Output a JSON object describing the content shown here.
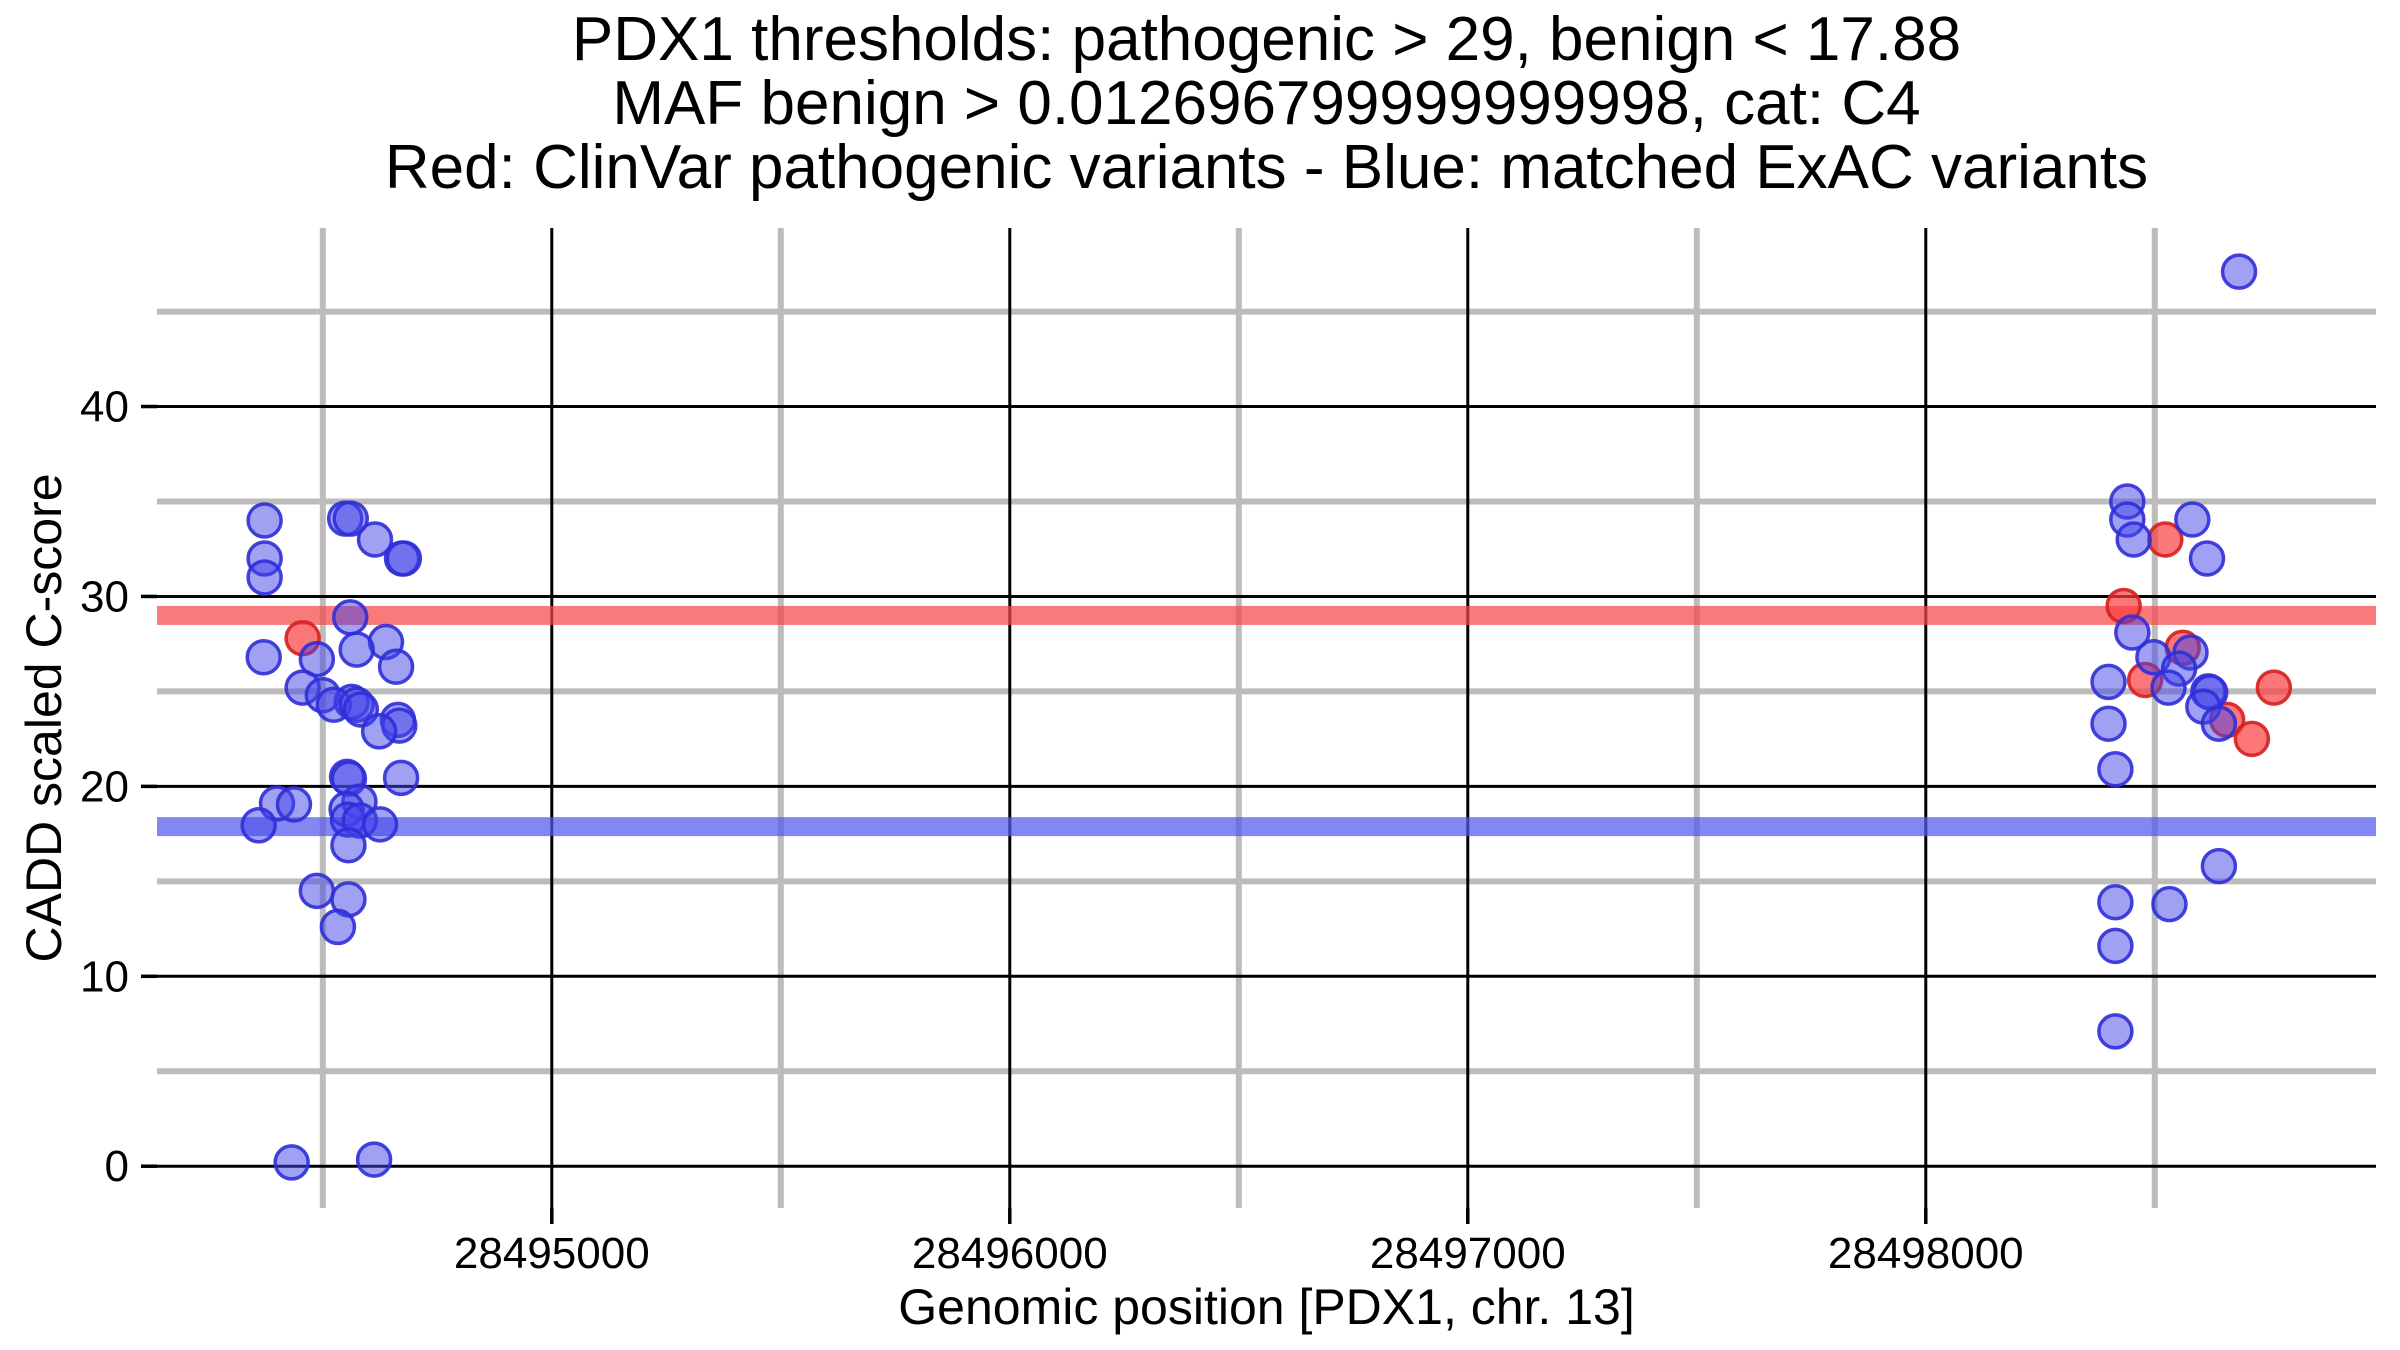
{
  "chart_data": {
    "type": "scatter",
    "title_lines": [
      "PDX1 thresholds: pathogenic > 29, benign < 17.88",
      "MAF benign > 0.012696799999999998, cat: C4",
      "Red: ClinVar pathogenic variants - Blue: matched ExAC variants"
    ],
    "xlabel": "Genomic position [PDX1, chr. 13]",
    "ylabel": "CADD scaled C-score",
    "grid": true,
    "legend_position": "none",
    "x_axis": {
      "range": [
        28494138,
        28498983
      ],
      "ticks": [
        28495000,
        28496000,
        28497000,
        28498000
      ],
      "minor_ticks": [
        28494500,
        28495500,
        28496500,
        28497500,
        28498500
      ]
    },
    "y_axis": {
      "range": [
        -2.2,
        49.4
      ],
      "ticks": [
        0,
        10,
        20,
        30,
        40
      ],
      "minor_ticks": [
        5,
        15,
        25,
        35,
        45
      ]
    },
    "thresholds": [
      {
        "name": "pathogenic",
        "value": 29,
        "color": "#f64747",
        "opacity": 0.72
      },
      {
        "name": "benign",
        "value": 17.88,
        "color": "#5358ef",
        "opacity": 0.72
      }
    ],
    "series": [
      {
        "key": "clinvar-pathogenic",
        "name": "ClinVar pathogenic variants",
        "fill": "#fb3d3d",
        "fill_opacity": 0.7,
        "stroke": "#d42020",
        "points": [
          [
            28494456,
            27.8
          ],
          [
            28498432,
            29.5
          ],
          [
            28498523,
            33.0
          ],
          [
            28498561,
            27.3
          ],
          [
            28498479,
            25.6
          ],
          [
            28498760,
            25.2
          ],
          [
            28498658,
            23.5
          ],
          [
            28498712,
            22.5
          ]
        ]
      },
      {
        "key": "matched-exac",
        "name": "matched ExAC variants",
        "fill": "#4343ea",
        "fill_opacity": 0.5,
        "stroke": "#2f2fd8",
        "points": [
          [
            28494373,
            34.0
          ],
          [
            28494549,
            34.1
          ],
          [
            28494561,
            34.1
          ],
          [
            28494614,
            33.0
          ],
          [
            28494673,
            32.0
          ],
          [
            28494677,
            32.0
          ],
          [
            28494373,
            32.0
          ],
          [
            28494373,
            31.0
          ],
          [
            28494560,
            28.9
          ],
          [
            28494638,
            27.6
          ],
          [
            28494574,
            27.2
          ],
          [
            28494371,
            26.8
          ],
          [
            28494487,
            26.7
          ],
          [
            28494660,
            26.3
          ],
          [
            28494456,
            25.2
          ],
          [
            28494500,
            24.8
          ],
          [
            28494563,
            24.45
          ],
          [
            28494524,
            24.3
          ],
          [
            28494574,
            24.3
          ],
          [
            28494583,
            24.05
          ],
          [
            28494664,
            23.5
          ],
          [
            28494667,
            23.2
          ],
          [
            28494623,
            22.9
          ],
          [
            28494553,
            20.5
          ],
          [
            28494557,
            20.4
          ],
          [
            28494671,
            20.45
          ],
          [
            28494400,
            19.1
          ],
          [
            28494437,
            19.05
          ],
          [
            28494580,
            19.2
          ],
          [
            28494552,
            18.8
          ],
          [
            28494555,
            18.25
          ],
          [
            28494581,
            18.2
          ],
          [
            28494625,
            18.0
          ],
          [
            28494360,
            17.95
          ],
          [
            28494556,
            16.9
          ],
          [
            28494487,
            14.5
          ],
          [
            28494556,
            14.05
          ],
          [
            28494533,
            12.6
          ],
          [
            28494432,
            0.2
          ],
          [
            28494612,
            0.35
          ],
          [
            28498684,
            47.1
          ],
          [
            28498440,
            35.0
          ],
          [
            28498440,
            34.05
          ],
          [
            28498582,
            34.05
          ],
          [
            28498454,
            33.0
          ],
          [
            28498614,
            32.0
          ],
          [
            28498451,
            28.1
          ],
          [
            28498578,
            27.05
          ],
          [
            28498497,
            26.8
          ],
          [
            28498553,
            26.2
          ],
          [
            28498399,
            25.5
          ],
          [
            28498530,
            25.2
          ],
          [
            28498617,
            25.0
          ],
          [
            28498621,
            24.95
          ],
          [
            28498606,
            24.2
          ],
          [
            28498640,
            23.3
          ],
          [
            28498399,
            23.3
          ],
          [
            28498414,
            20.9
          ],
          [
            28498640,
            15.8
          ],
          [
            28498414,
            13.9
          ],
          [
            28498532,
            13.8
          ],
          [
            28498414,
            11.6
          ],
          [
            28498414,
            7.1
          ]
        ]
      }
    ],
    "colors": {
      "major_gridline": "#000000",
      "minor_gridline": "#bcbcbc",
      "background": "#ffffff",
      "text": "#000000"
    }
  }
}
